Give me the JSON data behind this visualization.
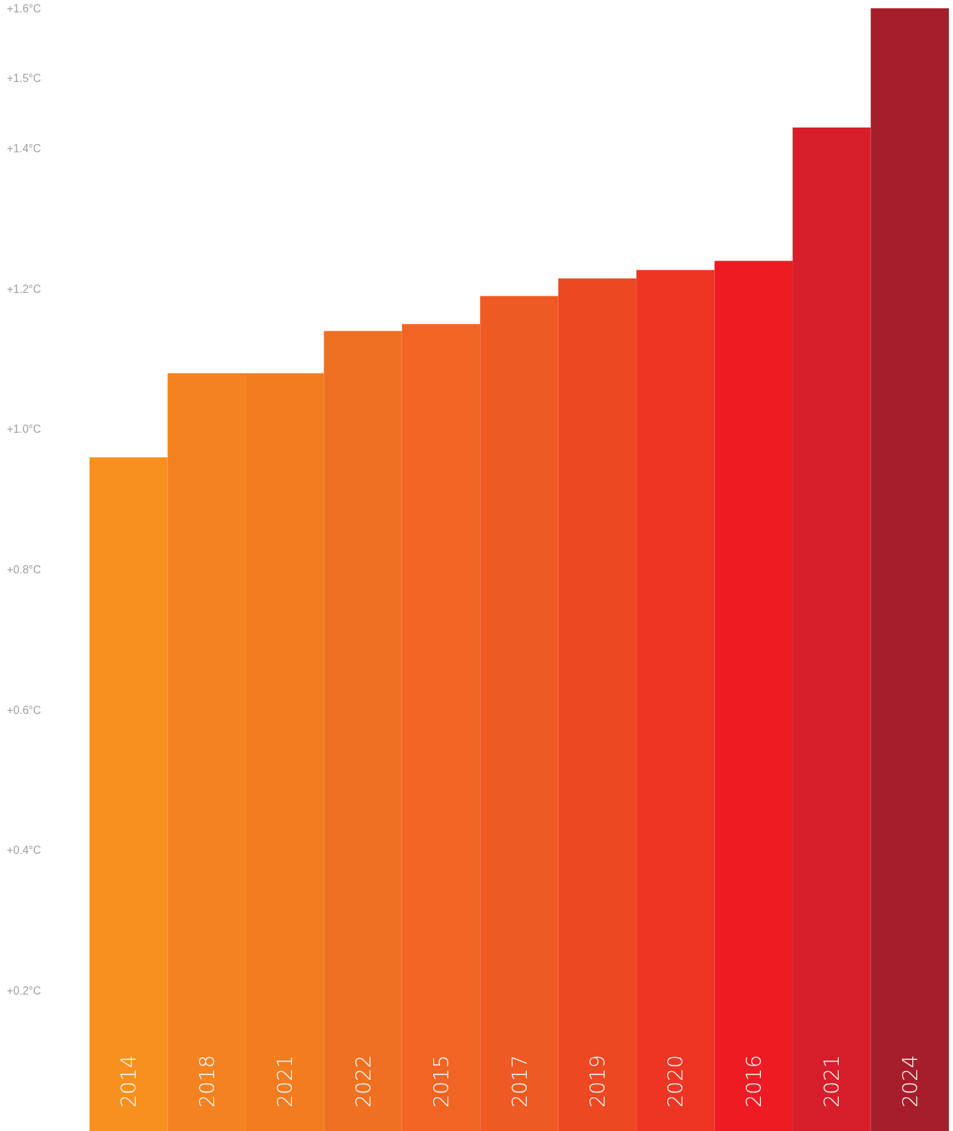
{
  "chart_data": {
    "type": "bar",
    "categories": [
      "2014",
      "2018",
      "2021",
      "2022",
      "2015",
      "2017",
      "2019",
      "2020",
      "2016",
      "2021",
      "2024"
    ],
    "values": [
      0.96,
      1.08,
      1.08,
      1.14,
      1.15,
      1.19,
      1.215,
      1.227,
      1.24,
      1.43,
      1.6
    ],
    "colors": [
      "#f7901e",
      "#f58220",
      "#f37b20",
      "#f07022",
      "#f06524",
      "#ef5a24",
      "#ee4823",
      "#ec3623",
      "#ed1c24",
      "#d71f2b",
      "#a71e2a"
    ],
    "ylim": [
      0,
      1.6
    ],
    "yticks": [
      {
        "value": 0.2,
        "label": "+0.2°C"
      },
      {
        "value": 0.4,
        "label": "+0.4°C"
      },
      {
        "value": 0.6,
        "label": "+0.6°C"
      },
      {
        "value": 0.8,
        "label": "+0.8°C"
      },
      {
        "value": 1.0,
        "label": "+1.0°C"
      },
      {
        "value": 1.2,
        "label": "+1.2°C"
      },
      {
        "value": 1.4,
        "label": "+1.4°C"
      },
      {
        "value": 1.5,
        "label": "+1.5°C"
      },
      {
        "value": 1.6,
        "label": "+1.6°C"
      }
    ],
    "grid": false
  }
}
